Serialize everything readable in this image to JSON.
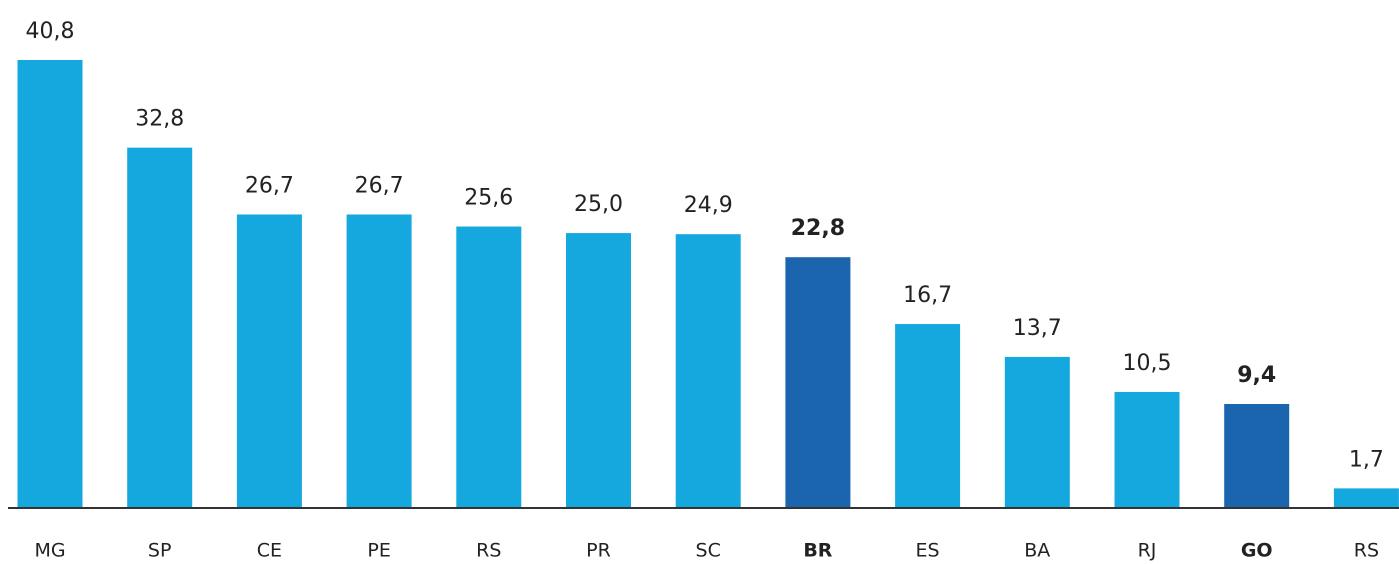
{
  "chart_data": {
    "type": "bar",
    "categories": [
      "MG",
      "SP",
      "CE",
      "PE",
      "RS",
      "PR",
      "SC",
      "BR",
      "ES",
      "BA",
      "RJ",
      "GO",
      "RS"
    ],
    "values": [
      40.8,
      32.8,
      26.7,
      26.7,
      25.6,
      25.0,
      24.9,
      22.8,
      16.7,
      13.7,
      10.5,
      9.4,
      1.7
    ],
    "value_labels": [
      "40,8",
      "32,8",
      "26,7",
      "26,7",
      "25,6",
      "25,0",
      "24,9",
      "22,8",
      "16,7",
      "13,7",
      "10,5",
      "9,4",
      "1,7"
    ],
    "colors": [
      "#14a8de",
      "#14a8de",
      "#14a8de",
      "#14a8de",
      "#14a8de",
      "#14a8de",
      "#14a8de",
      "#1a65ad",
      "#14a8de",
      "#14a8de",
      "#14a8de",
      "#1a65ad",
      "#14a8de"
    ],
    "highlight_color": "#1a65ad",
    "ylim": [
      0,
      40.8
    ]
  }
}
